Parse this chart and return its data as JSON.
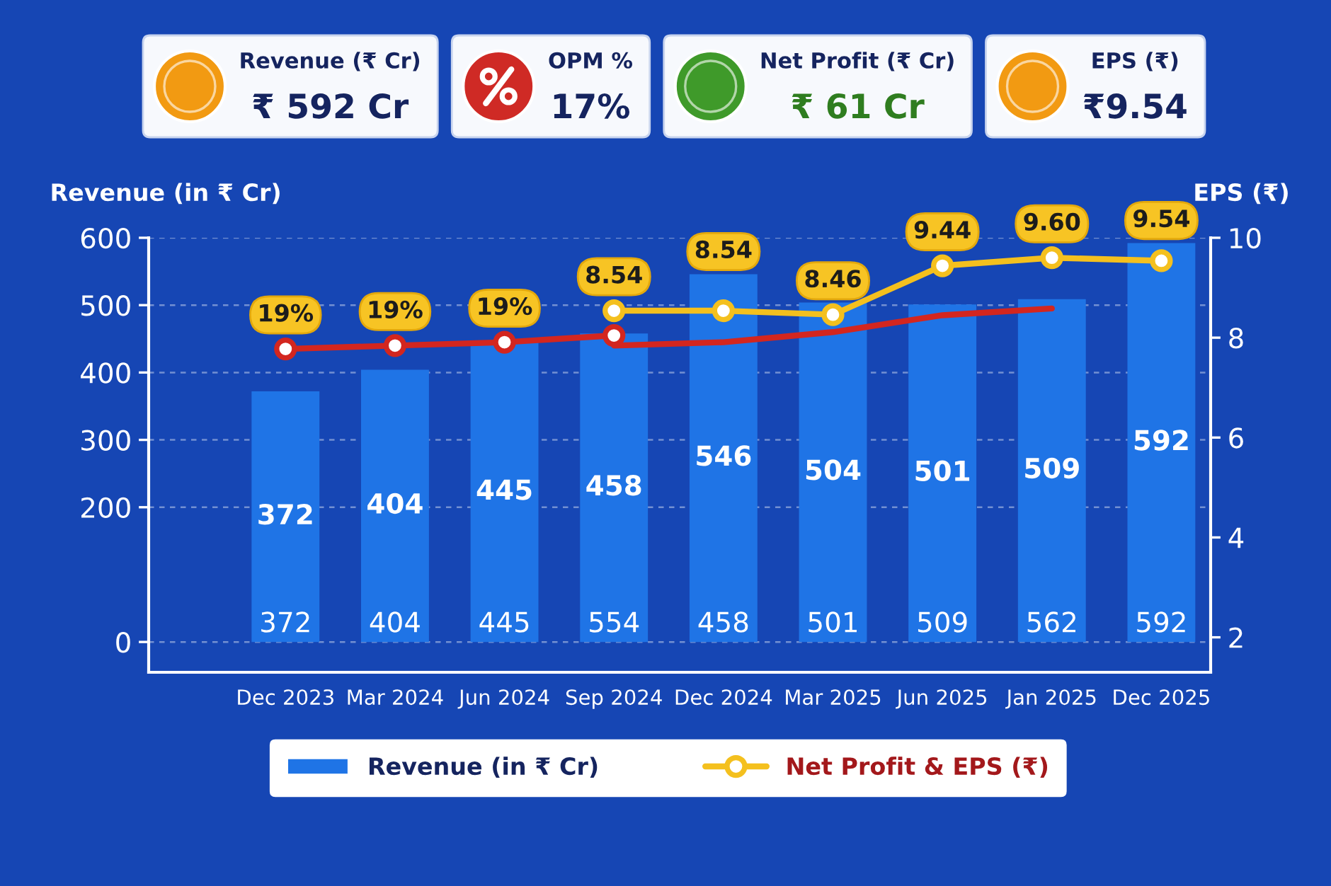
{
  "chart_data": [
    {
      "type": "other",
      "annotations": [
        "Revenue (₹ Cr)",
        "₹ 592 Cr",
        "OPM %",
        "17%",
        "Net Profit (₹ Cr)",
        "₹ 61 Cr",
        "EPS (₹)",
        "₹9.54"
      ]
    },
    {
      "type": "bar",
      "categories": [
        "Dec 2023",
        "Mar 2024",
        "Jun 2024",
        "Sep 2024",
        "Dec 2024",
        "Mar 2025",
        "Jun 2025",
        "Jan 2025",
        "Dec 2025"
      ],
      "ylabel": "Revenue (in ₹ Cr)",
      "y2label": "EPS (₹)",
      "ylim": [
        -45,
        600
      ],
      "yticks": [
        0,
        200,
        300,
        400,
        500,
        600
      ],
      "y2lim": [
        1.3,
        10
      ],
      "y2ticks": [
        2,
        4,
        6,
        8,
        10
      ],
      "grid": "y",
      "legend": "bottom",
      "series": [
        {
          "name": "Revenue (in ₹ Cr)",
          "type": "bar",
          "color": "#1f74e6",
          "values": [
            372,
            404,
            445,
            458,
            546,
            504,
            501,
            509,
            592
          ],
          "value_labels": [
            "372",
            "404",
            "445",
            "458",
            "546",
            "504",
            "501",
            "509",
            "592"
          ]
        },
        {
          "type": "line",
          "color": "#d3261f",
          "marker": "circle",
          "values": [
            435,
            440,
            445,
            455,
            null,
            null,
            null,
            null,
            null
          ]
        },
        {
          "type": "line",
          "color": "#d3261f",
          "values": [
            null,
            null,
            null,
            440,
            445,
            460,
            485,
            495,
            null
          ]
        },
        {
          "name": "Net Profit & EPS (₹)",
          "type": "line",
          "axis": "y2",
          "color": "#f4c01e",
          "marker": "circle",
          "values": [
            null,
            null,
            null,
            8.54,
            8.54,
            8.46,
            9.44,
            9.6,
            9.54
          ],
          "value_labels": [
            null,
            null,
            null,
            "8.54",
            "8.54",
            "8.46",
            "9.44",
            "9.60",
            "9.54"
          ]
        }
      ],
      "annotations": [
        {
          "text": "19%",
          "x": "Dec 2023",
          "y": 435
        },
        {
          "text": "19%",
          "x": "Mar 2024",
          "y": 440
        },
        {
          "text": "19%",
          "x": "Jun 2024",
          "y": 445
        },
        "372",
        "404",
        "445",
        "554",
        "458",
        "501",
        "509",
        "562",
        "592"
      ]
    }
  ]
}
